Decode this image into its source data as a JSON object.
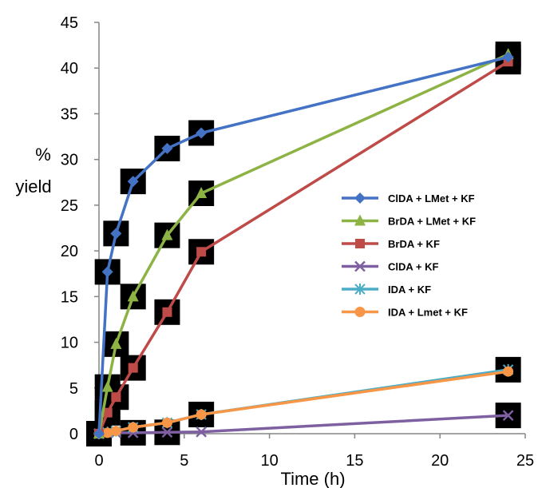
{
  "chart_data": {
    "type": "line",
    "title": "",
    "xlabel": "Time  (h)",
    "ylabel_line1": "%",
    "ylabel_line2": "yield",
    "xlim": [
      0,
      25
    ],
    "ylim": [
      0,
      45
    ],
    "xticks": [
      0,
      5,
      10,
      15,
      20,
      25
    ],
    "yticks": [
      0,
      5,
      10,
      15,
      20,
      25,
      30,
      35,
      40,
      45
    ],
    "grid": false,
    "legend_position": "right",
    "series": [
      {
        "name": "ClDA + LMet + KF",
        "color": "#4472C4",
        "marker": "diamond",
        "x": [
          0,
          0.5,
          1,
          2,
          4,
          6,
          24
        ],
        "y": [
          0,
          17.7,
          21.9,
          27.6,
          31.2,
          32.9,
          41.2
        ]
      },
      {
        "name": "BrDA + LMet + KF",
        "color": "#8DB344",
        "marker": "triangle",
        "x": [
          0,
          0.5,
          1,
          2,
          4,
          6,
          24
        ],
        "y": [
          0,
          5.1,
          9.8,
          15.0,
          21.7,
          26.3,
          41.5
        ]
      },
      {
        "name": "BrDA + KF",
        "color": "#BE4B48",
        "marker": "square",
        "x": [
          0,
          0.5,
          1,
          2,
          4,
          6,
          24
        ],
        "y": [
          0,
          2.3,
          4.0,
          7.2,
          13.3,
          19.9,
          40.7
        ]
      },
      {
        "name": "ClDA + KF",
        "color": "#7E5FA1",
        "marker": "x",
        "x": [
          0,
          0.5,
          1,
          2,
          4,
          6,
          24
        ],
        "y": [
          0,
          0.1,
          0.1,
          0.1,
          0.15,
          0.2,
          2.0
        ]
      },
      {
        "name": "IDA + KF",
        "color": "#4BACC6",
        "marker": "star",
        "x": [
          0,
          0.5,
          1,
          2,
          4,
          6,
          24
        ],
        "y": [
          0,
          0.15,
          0.3,
          0.7,
          1.2,
          2.1,
          7.0
        ]
      },
      {
        "name": "IDA + Lmet + KF",
        "color": "#F79646",
        "marker": "circle",
        "x": [
          0,
          0.5,
          1,
          2,
          4,
          6,
          24
        ],
        "y": [
          0,
          0.1,
          0.3,
          0.7,
          1.2,
          2.1,
          6.8
        ]
      }
    ]
  }
}
